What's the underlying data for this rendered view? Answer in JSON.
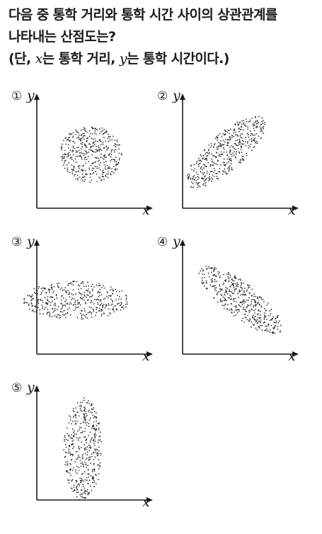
{
  "question": {
    "line1": "다음 중 통학 거리와 통학 시간 사이의 상관관계를",
    "line2": "나타내는 산점도는?",
    "line3_open": "(단, ",
    "line3_var_x": "x",
    "line3_mid": "는 통학 거리, ",
    "line3_var_y": "y",
    "line3_end": "는 통학 시간이다.)"
  },
  "axis": {
    "x_label": "x",
    "y_label": "y"
  },
  "chart_data": [
    {
      "type": "scatter",
      "option": "①",
      "correlation": "none",
      "cloud_shape": "circle",
      "xlabel": "x",
      "ylabel": "y"
    },
    {
      "type": "scatter",
      "option": "②",
      "correlation": "positive",
      "cloud_shape": "ellipse rising to the right",
      "xlabel": "x",
      "ylabel": "y"
    },
    {
      "type": "scatter",
      "option": "③",
      "correlation": "none",
      "cloud_shape": "horizontal ellipse",
      "xlabel": "x",
      "ylabel": "y"
    },
    {
      "type": "scatter",
      "option": "④",
      "correlation": "negative",
      "cloud_shape": "ellipse falling to the right",
      "xlabel": "x",
      "ylabel": "y"
    },
    {
      "type": "scatter",
      "option": "⑤",
      "correlation": "none",
      "cloud_shape": "vertical ellipse",
      "xlabel": "x",
      "ylabel": "y"
    }
  ]
}
